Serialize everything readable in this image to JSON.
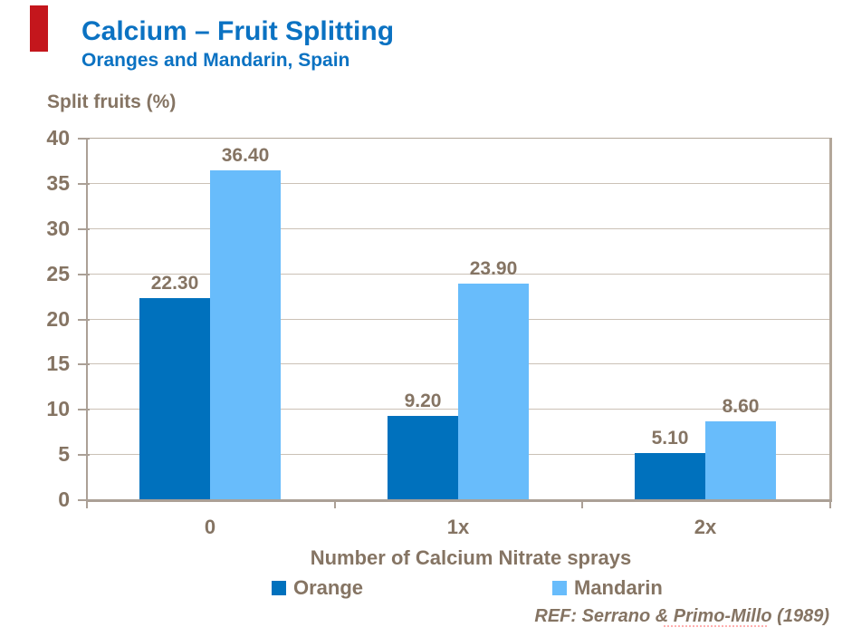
{
  "header": {
    "title": "Calcium – Fruit Splitting",
    "subtitle": "Oranges and Mandarin, Spain"
  },
  "chart_data": {
    "type": "bar",
    "title": "Calcium – Fruit Splitting",
    "subtitle": "Oranges and Mandarin, Spain",
    "ylabel": "Split fruits (%)",
    "xlabel": "Number of Calcium Nitrate sprays",
    "categories": [
      "0",
      "1x",
      "2x"
    ],
    "series": [
      {
        "name": "Orange",
        "color": "#0071BD",
        "values": [
          22.3,
          9.2,
          5.1
        ],
        "value_labels": [
          "22.30",
          "9.20",
          "5.10"
        ]
      },
      {
        "name": "Mandarin",
        "color": "#68BCFB",
        "values": [
          36.4,
          23.9,
          8.6
        ],
        "value_labels": [
          "36.40",
          "23.90",
          "8.60"
        ]
      }
    ],
    "ylim": [
      0,
      40
    ],
    "yticks": [
      0,
      5,
      10,
      15,
      20,
      25,
      30,
      35,
      40
    ],
    "grid": true,
    "legend_position": "bottom"
  },
  "footer": {
    "reference": "REF: Serrano & Primo-Millo (1989)"
  },
  "colors": {
    "accent_red": "#C4161C",
    "title_blue": "#0B72C2",
    "text_brown": "#857463",
    "orange_series": "#0071BD",
    "mandarin_series": "#68BCFB",
    "gridline": "#CBC1B6",
    "axis": "#ABA096",
    "plot_border": "#B3A79A"
  }
}
